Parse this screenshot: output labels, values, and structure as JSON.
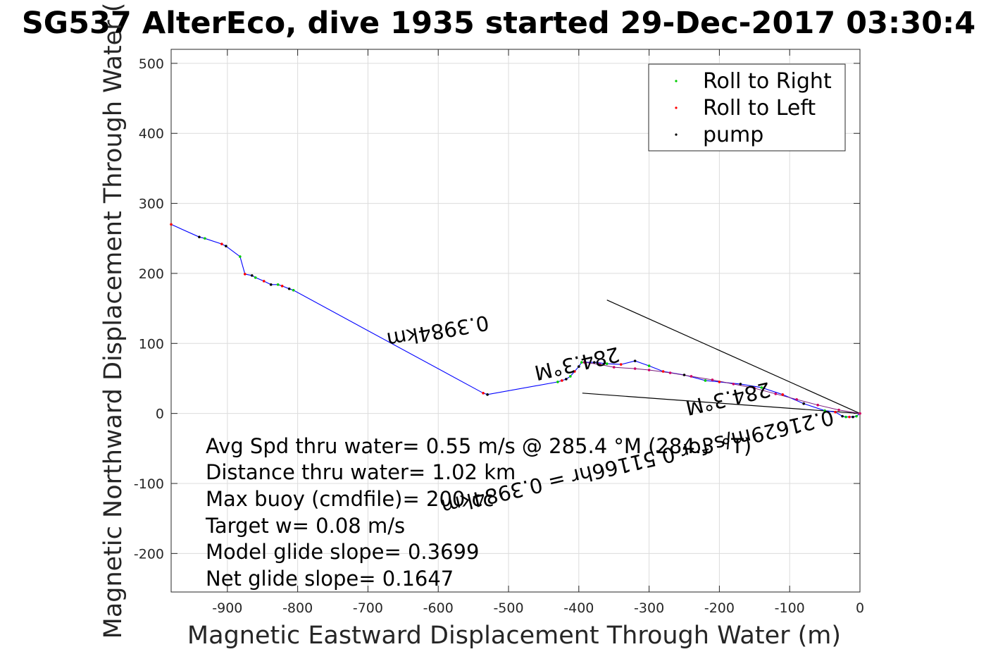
{
  "chart_data": {
    "type": "line",
    "title": "SG537 AlterEco, dive 1935 started 29-Dec-2017 03:30:4",
    "xlabel": "Magnetic Eastward Displacement Through Water (m)",
    "ylabel": "Magnetic Northward Displacement Through Water (",
    "xlim": [
      -980,
      0
    ],
    "ylim": [
      -255,
      520
    ],
    "xticks": [
      -900,
      -800,
      -700,
      -600,
      -500,
      -400,
      -300,
      -200,
      -100,
      0
    ],
    "xtick_labels": [
      "-900",
      "-800",
      "-700",
      "-600",
      "-500",
      "-400",
      "-300",
      "-200",
      "-100",
      "0"
    ],
    "yticks": [
      -200,
      -100,
      0,
      100,
      200,
      300,
      400,
      500
    ],
    "ytick_labels": [
      "-200",
      "-100",
      "0",
      "100",
      "200",
      "300",
      "400",
      "500"
    ],
    "grid": true,
    "legend_position": "top-right",
    "legend": [
      {
        "label": "Roll to Right",
        "color": "#00cc00"
      },
      {
        "label": "Roll to Left",
        "color": "#ff0000"
      },
      {
        "label": "pump",
        "color": "#000000"
      }
    ],
    "track_color": "#0000ff",
    "series": [
      {
        "name": "",
        "x": [
          -980,
          -940,
          -932,
          -908,
          -902,
          -882,
          -875,
          -865,
          -860,
          -848,
          -838,
          -828,
          -822,
          -812,
          -806,
          -536,
          -530,
          -430,
          -424,
          -418,
          -412,
          -406,
          -400,
          -396,
          -392,
          -378,
          -360,
          -340,
          -320,
          -300,
          -280,
          -250,
          -220,
          -200,
          -170,
          -140,
          -110,
          -80,
          -50,
          -35,
          -25,
          -20,
          -15,
          -10,
          -5,
          0
        ],
        "y": [
          270,
          252,
          250,
          242,
          239,
          224,
          199,
          197,
          194,
          189,
          184,
          184,
          182,
          178,
          176,
          29,
          27,
          45,
          47,
          49,
          53,
          60,
          67,
          73,
          73,
          73,
          71,
          70,
          75,
          68,
          60,
          55,
          47,
          45,
          42,
          37,
          27,
          14,
          4,
          2,
          -4,
          -5,
          -5,
          -5,
          -4,
          0
        ]
      },
      {
        "name": "",
        "x": [
          -392,
          -370,
          -350,
          -320,
          -300,
          -270,
          -240,
          -210,
          -180,
          -150,
          -120,
          -90,
          -60,
          -30,
          0
        ],
        "y": [
          73,
          70,
          66,
          64,
          62,
          58,
          53,
          48,
          42,
          36,
          28,
          20,
          12,
          5,
          0
        ]
      }
    ],
    "annotation_lines": [
      {
        "x": [
          -360,
          0
        ],
        "y": [
          162,
          0
        ]
      },
      {
        "x": [
          -395,
          0
        ],
        "y": [
          29,
          0
        ]
      }
    ],
    "annotations": [
      {
        "text": "0.3984km",
        "x": -530,
        "y": 140,
        "rotation": 170
      },
      {
        "text": "0.21629m/s for 0.51166hr = 0.3984km",
        "x": -40,
        "y": 5,
        "rotation": 167
      },
      {
        "text": "284.3°M",
        "x": -130,
        "y": 45,
        "rotation": 167
      },
      {
        "text": "284.3°M",
        "x": -345,
        "y": 95,
        "rotation": 167
      }
    ],
    "stats": [
      "Avg Spd thru water=  0.55 m/s @ 285.4 °M (284.3 °T)",
      "Distance thru water=  1.02 km",
      "Max buoy (cmdfile)= 200 cc",
      "Target w= 0.08 m/s",
      "Model glide slope= 0.3699",
      "Net glide slope= 0.1647"
    ]
  }
}
